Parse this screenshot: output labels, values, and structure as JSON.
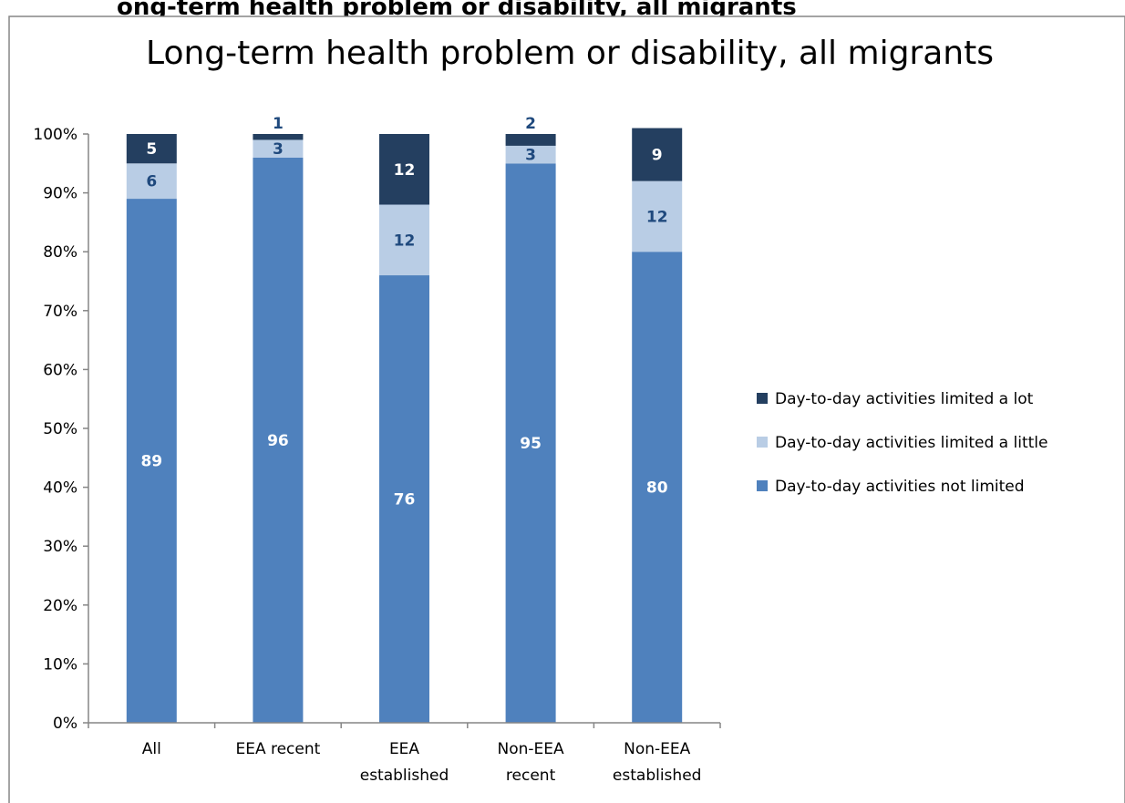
{
  "chart_data": {
    "type": "bar",
    "stacked": true,
    "overflow_header": "ong-term health problem or disability, all migrants",
    "title": "Long-term health problem or disability, all migrants",
    "categories": [
      [
        "All"
      ],
      [
        "EEA recent"
      ],
      [
        "EEA",
        "established"
      ],
      [
        "Non-EEA",
        "recent"
      ],
      [
        "Non-EEA",
        "established"
      ]
    ],
    "y_ticks": [
      "0%",
      "10%",
      "20%",
      "30%",
      "40%",
      "50%",
      "60%",
      "70%",
      "80%",
      "90%",
      "100%"
    ],
    "ylim": [
      0,
      100
    ],
    "y_unit": "percent",
    "grid": false,
    "legend_position": "right",
    "series": [
      {
        "name": "Day-to-day activities not limited",
        "color": "#4f81bd",
        "label_color": "#ffffff",
        "values": [
          89,
          96,
          76,
          95,
          80
        ],
        "labels": [
          "89",
          "96",
          "76",
          "95",
          "80"
        ]
      },
      {
        "name": "Day-to-day activities limited a little",
        "color": "#b9cde5",
        "label_color": "#1f497d",
        "values": [
          6,
          3,
          12,
          3,
          12
        ],
        "labels": [
          "6",
          "3",
          "12",
          "3",
          "12"
        ]
      },
      {
        "name": "Day-to-day activities limited a lot",
        "color": "#243f60",
        "label_color": "#ffffff",
        "values": [
          5,
          1,
          12,
          2,
          9
        ],
        "labels": [
          "5",
          "1",
          "12",
          "2",
          "9"
        ]
      }
    ]
  }
}
